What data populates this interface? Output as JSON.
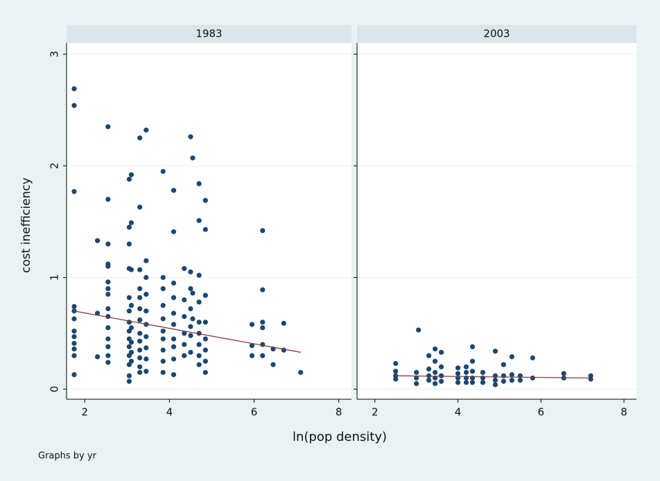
{
  "chart_data": {
    "type": "scatter",
    "ylabel": "cost inefficiency",
    "xlabel": "ln(pop density)",
    "note": "Graphs by yr",
    "ylim": [
      -0.09,
      3.1
    ],
    "yticks": [
      0,
      1,
      2,
      3
    ],
    "xlim": [
      1.57,
      8.3
    ],
    "xticks": [
      2,
      4,
      6,
      8
    ],
    "grid": true,
    "color": "#1a476f",
    "fit_color": "#90353b",
    "panels": [
      {
        "title": "1983",
        "x": [
          1.75,
          1.75,
          1.75,
          1.75,
          1.75,
          1.75,
          1.75,
          1.75,
          1.75,
          1.75,
          1.75,
          1.75,
          2.3,
          2.3,
          2.3,
          2.55,
          2.55,
          2.55,
          2.55,
          2.55,
          2.55,
          2.55,
          2.55,
          2.55,
          2.55,
          2.55,
          2.55,
          2.55,
          2.55,
          2.55,
          3.05,
          3.05,
          3.05,
          3.05,
          3.05,
          3.05,
          3.05,
          3.05,
          3.05,
          3.05,
          3.05,
          3.05,
          3.05,
          3.05,
          3.1,
          3.1,
          3.1,
          3.1,
          3.1,
          3.1,
          3.1,
          3.1,
          3.3,
          3.3,
          3.3,
          3.3,
          3.3,
          3.3,
          3.3,
          3.3,
          3.3,
          3.3,
          3.3,
          3.3,
          3.3,
          3.45,
          3.45,
          3.45,
          3.45,
          3.45,
          3.45,
          3.45,
          3.45,
          3.45,
          3.45,
          3.85,
          3.85,
          3.85,
          3.85,
          3.85,
          3.85,
          3.85,
          3.85,
          3.85,
          3.85,
          4.1,
          4.1,
          4.1,
          4.1,
          4.1,
          4.1,
          4.1,
          4.1,
          4.1,
          4.1,
          4.35,
          4.35,
          4.35,
          4.35,
          4.35,
          4.35,
          4.5,
          4.5,
          4.5,
          4.5,
          4.5,
          4.5,
          4.5,
          4.55,
          4.55,
          4.55,
          4.7,
          4.7,
          4.7,
          4.7,
          4.7,
          4.7,
          4.7,
          4.7,
          4.7,
          4.85,
          4.85,
          4.85,
          4.85,
          4.85,
          4.85,
          4.85,
          4.85,
          5.95,
          5.95,
          5.95,
          6.2,
          6.2,
          6.2,
          6.2,
          6.2,
          6.2,
          6.45,
          6.45,
          6.7,
          6.7,
          7.1
        ],
        "values": [
          2.69,
          2.54,
          1.77,
          0.74,
          0.7,
          0.63,
          0.52,
          0.47,
          0.41,
          0.36,
          0.3,
          0.13,
          1.33,
          0.68,
          0.29,
          2.35,
          1.7,
          1.3,
          1.12,
          1.1,
          0.96,
          0.9,
          0.85,
          0.72,
          0.65,
          0.55,
          0.45,
          0.38,
          0.3,
          0.24,
          1.88,
          1.45,
          1.3,
          1.08,
          0.82,
          0.7,
          0.6,
          0.52,
          0.45,
          0.38,
          0.3,
          0.22,
          0.12,
          0.07,
          1.92,
          1.49,
          1.07,
          0.75,
          0.55,
          0.42,
          0.33,
          0.25,
          2.25,
          1.63,
          1.07,
          0.9,
          0.82,
          0.72,
          0.62,
          0.5,
          0.43,
          0.35,
          0.28,
          0.2,
          0.15,
          2.32,
          1.15,
          1.0,
          0.85,
          0.7,
          0.58,
          0.47,
          0.37,
          0.27,
          0.16,
          1.95,
          1.0,
          0.9,
          0.75,
          0.63,
          0.52,
          0.45,
          0.35,
          0.25,
          0.15,
          1.78,
          1.41,
          0.95,
          0.82,
          0.68,
          0.58,
          0.45,
          0.38,
          0.27,
          0.13,
          1.08,
          0.8,
          0.65,
          0.5,
          0.4,
          0.3,
          2.26,
          1.05,
          0.9,
          0.72,
          0.56,
          0.48,
          0.33,
          2.07,
          0.86,
          0.63,
          1.84,
          1.51,
          1.02,
          0.78,
          0.6,
          0.5,
          0.4,
          0.3,
          0.22,
          1.69,
          1.43,
          0.84,
          0.6,
          0.45,
          0.35,
          0.25,
          0.15,
          0.58,
          0.39,
          0.3,
          1.42,
          0.89,
          0.6,
          0.55,
          0.4,
          0.3,
          0.36,
          0.22,
          0.59,
          0.35,
          0.15
        ],
        "fit": {
          "x": [
            1.75,
            7.1
          ],
          "values": [
            0.7,
            0.33
          ]
        }
      },
      {
        "title": "2003",
        "x": [
          2.5,
          2.5,
          2.5,
          2.5,
          3.05,
          3.0,
          3.0,
          3.0,
          3.3,
          3.3,
          3.3,
          3.3,
          3.45,
          3.45,
          3.45,
          3.45,
          3.45,
          3.6,
          3.6,
          3.6,
          3.6,
          4.0,
          4.0,
          4.0,
          4.0,
          4.2,
          4.2,
          4.2,
          4.2,
          4.35,
          4.35,
          4.35,
          4.35,
          4.35,
          4.6,
          4.6,
          4.6,
          4.9,
          4.9,
          4.9,
          4.9,
          5.1,
          5.1,
          5.1,
          5.3,
          5.3,
          5.3,
          5.5,
          5.5,
          5.8,
          5.8,
          6.55,
          6.55,
          7.2,
          7.2
        ],
        "values": [
          0.23,
          0.16,
          0.12,
          0.09,
          0.53,
          0.15,
          0.1,
          0.05,
          0.3,
          0.18,
          0.12,
          0.08,
          0.36,
          0.25,
          0.15,
          0.1,
          0.05,
          0.33,
          0.2,
          0.12,
          0.07,
          0.19,
          0.14,
          0.1,
          0.06,
          0.2,
          0.15,
          0.1,
          0.06,
          0.38,
          0.25,
          0.16,
          0.1,
          0.06,
          0.15,
          0.1,
          0.06,
          0.34,
          0.12,
          0.08,
          0.04,
          0.22,
          0.12,
          0.07,
          0.29,
          0.13,
          0.08,
          0.12,
          0.08,
          0.28,
          0.1,
          0.14,
          0.1,
          0.12,
          0.09
        ],
        "fit": {
          "x": [
            2.5,
            7.2
          ],
          "values": [
            0.12,
            0.1
          ]
        }
      }
    ]
  }
}
